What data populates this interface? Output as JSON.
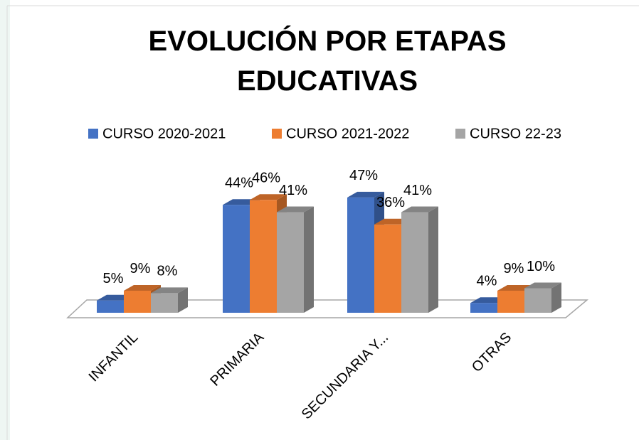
{
  "chart_data": {
    "type": "bar3d",
    "title": "EVOLUCIÓN POR ETAPAS EDUCATIVAS",
    "categories": [
      "INFANTIL",
      "PRIMARIA",
      "SECUNDARIA Y...",
      "OTRAS"
    ],
    "series": [
      {
        "name": "CURSO 2020-2021",
        "color": "#4472c4",
        "values": [
          5,
          44,
          47,
          4
        ],
        "value_labels": [
          "5%",
          "44%",
          "47%",
          "4%"
        ]
      },
      {
        "name": "CURSO 2021-2022",
        "color": "#ed7d31",
        "values": [
          9,
          46,
          36,
          9
        ],
        "value_labels": [
          "9%",
          "46%",
          "36%",
          "9%"
        ]
      },
      {
        "name": "CURSO 22-23",
        "color": "#a5a5a5",
        "values": [
          8,
          41,
          41,
          10
        ],
        "value_labels": [
          "8%",
          "41%",
          "41%",
          "10%"
        ]
      }
    ],
    "legend": "top"
  }
}
